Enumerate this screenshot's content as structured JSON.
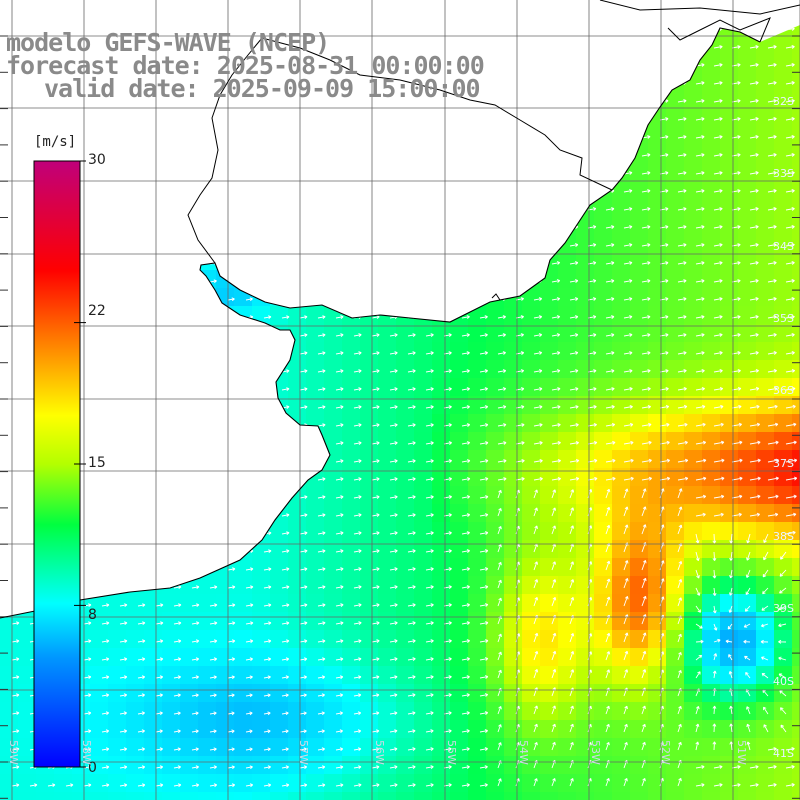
{
  "title": {
    "line1": "modelo GEFS-WAVE (NCEP)",
    "line2": "forecast date: 2025-08-31 00:00:00",
    "line3": "valid date: 2025-09-09 15:00:00"
  },
  "colorbar": {
    "unit": "[m/s]",
    "ticks": [
      "30",
      "22",
      "15",
      "8",
      "0"
    ],
    "tick_values": [
      30,
      22,
      15,
      8,
      0
    ],
    "range": [
      0,
      30
    ],
    "stops": [
      "#0000ff",
      "#0096ff",
      "#00ffff",
      "#00ff00",
      "#ffff00",
      "#ff8000",
      "#ff0000",
      "#c0007a"
    ]
  },
  "axes": {
    "lat_labels": [
      "32S",
      "33S",
      "34S",
      "35S",
      "36S",
      "37S",
      "38S",
      "39S",
      "40S",
      "41S"
    ],
    "lon_labels": [
      "59W",
      "58W",
      "57W",
      "56W",
      "55W",
      "54W",
      "53W",
      "52W",
      "51W"
    ]
  },
  "colors": {
    "land": "#ffffff",
    "coast": "#000000",
    "grid": "#666666",
    "arrows": "#ffffff",
    "title": "#8a8a8a"
  }
}
